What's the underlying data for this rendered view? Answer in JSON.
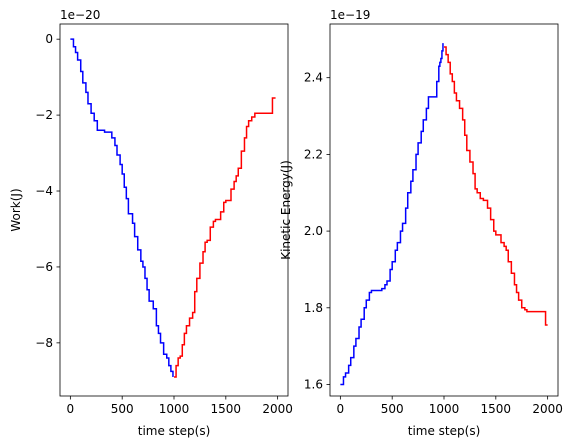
{
  "chart_data": [
    {
      "type": "line",
      "xlabel": "time step(s)",
      "ylabel": "Work(J)",
      "offset_text": "1e−20",
      "xlim": [
        -100,
        2100
      ],
      "ylim": [
        -9.4,
        0.4
      ],
      "xticks": [
        0,
        500,
        1000,
        1500,
        2000
      ],
      "xtick_labels": [
        "0",
        "500",
        "1000",
        "1500",
        "2000"
      ],
      "yticks": [
        0,
        -2,
        -4,
        -6,
        -8
      ],
      "ytick_labels": [
        "0",
        "−2",
        "−4",
        "−6",
        "−8"
      ],
      "series": [
        {
          "color": "#0000ff",
          "x": [
            0,
            30,
            50,
            70,
            100,
            120,
            150,
            170,
            200,
            230,
            260,
            300,
            330,
            380,
            400,
            430,
            450,
            480,
            500,
            520,
            540,
            560,
            600,
            620,
            650,
            680,
            700,
            720,
            740,
            760,
            800,
            830,
            850,
            870,
            900,
            930,
            950,
            970,
            990
          ],
          "y": [
            0,
            -0.2,
            -0.35,
            -0.55,
            -0.85,
            -1.15,
            -1.4,
            -1.7,
            -1.95,
            -2.15,
            -2.4,
            -2.4,
            -2.45,
            -2.45,
            -2.6,
            -2.8,
            -3.05,
            -3.3,
            -3.55,
            -3.9,
            -4.2,
            -4.6,
            -4.85,
            -5.2,
            -5.55,
            -5.85,
            -6.0,
            -6.3,
            -6.6,
            -6.9,
            -7.1,
            -7.55,
            -7.75,
            -8.0,
            -8.3,
            -8.4,
            -8.6,
            -8.75,
            -8.9
          ]
        },
        {
          "color": "#ff0000",
          "x": [
            1000,
            1020,
            1040,
            1060,
            1080,
            1100,
            1120,
            1150,
            1180,
            1200,
            1220,
            1250,
            1280,
            1300,
            1320,
            1350,
            1380,
            1400,
            1420,
            1450,
            1480,
            1500,
            1520,
            1550,
            1580,
            1600,
            1620,
            1650,
            1680,
            1700,
            1720,
            1750,
            1780,
            1800,
            1850,
            1900,
            1950,
            1980
          ],
          "y": [
            -8.9,
            -8.6,
            -8.4,
            -8.35,
            -8.05,
            -7.75,
            -7.55,
            -7.35,
            -7.2,
            -6.65,
            -6.3,
            -5.9,
            -5.6,
            -5.35,
            -5.3,
            -4.95,
            -4.8,
            -4.75,
            -4.75,
            -4.55,
            -4.3,
            -4.25,
            -4.25,
            -3.95,
            -3.75,
            -3.6,
            -3.4,
            -2.95,
            -2.6,
            -2.3,
            -2.15,
            -2.05,
            -1.95,
            -1.95,
            -1.95,
            -1.95,
            -1.55,
            -1.55
          ]
        }
      ]
    },
    {
      "type": "line",
      "xlabel": "time step(s)",
      "ylabel": "Kinetic Energy(J)",
      "offset_text": "1e−19",
      "xlim": [
        -100,
        2100
      ],
      "ylim": [
        1.57,
        2.54
      ],
      "xticks": [
        0,
        500,
        1000,
        1500,
        2000
      ],
      "xtick_labels": [
        "0",
        "500",
        "1000",
        "1500",
        "2000"
      ],
      "yticks": [
        1.6,
        1.8,
        2.0,
        2.2,
        2.4
      ],
      "ytick_labels": [
        "1.6",
        "1.8",
        "2.0",
        "2.2",
        "2.4"
      ],
      "series": [
        {
          "color": "#0000ff",
          "x": [
            0,
            30,
            50,
            80,
            100,
            130,
            150,
            180,
            200,
            230,
            250,
            280,
            300,
            350,
            400,
            430,
            450,
            480,
            500,
            530,
            550,
            580,
            600,
            630,
            650,
            680,
            700,
            730,
            750,
            780,
            800,
            830,
            850,
            880,
            900,
            930,
            950,
            960,
            970,
            980,
            990
          ],
          "y": [
            1.6,
            1.62,
            1.63,
            1.65,
            1.67,
            1.7,
            1.72,
            1.75,
            1.77,
            1.8,
            1.82,
            1.84,
            1.845,
            1.845,
            1.85,
            1.86,
            1.87,
            1.9,
            1.92,
            1.95,
            1.97,
            2.0,
            2.02,
            2.06,
            2.1,
            2.13,
            2.16,
            2.2,
            2.23,
            2.26,
            2.29,
            2.32,
            2.35,
            2.35,
            2.35,
            2.39,
            2.43,
            2.44,
            2.45,
            2.47,
            2.49
          ]
        },
        {
          "color": "#ff0000",
          "x": [
            1000,
            1020,
            1040,
            1060,
            1080,
            1100,
            1120,
            1150,
            1180,
            1200,
            1220,
            1250,
            1280,
            1300,
            1320,
            1350,
            1380,
            1400,
            1420,
            1450,
            1480,
            1500,
            1520,
            1550,
            1580,
            1600,
            1620,
            1650,
            1680,
            1700,
            1720,
            1750,
            1780,
            1800,
            1850,
            1900,
            1950,
            1980,
            2000
          ],
          "y": [
            2.48,
            2.46,
            2.44,
            2.41,
            2.39,
            2.36,
            2.34,
            2.32,
            2.29,
            2.25,
            2.21,
            2.18,
            2.15,
            2.11,
            2.1,
            2.085,
            2.08,
            2.08,
            2.06,
            2.03,
            2.0,
            1.99,
            1.99,
            1.97,
            1.96,
            1.95,
            1.92,
            1.89,
            1.86,
            1.84,
            1.82,
            1.8,
            1.795,
            1.79,
            1.79,
            1.79,
            1.79,
            1.755,
            1.755
          ]
        }
      ]
    }
  ]
}
